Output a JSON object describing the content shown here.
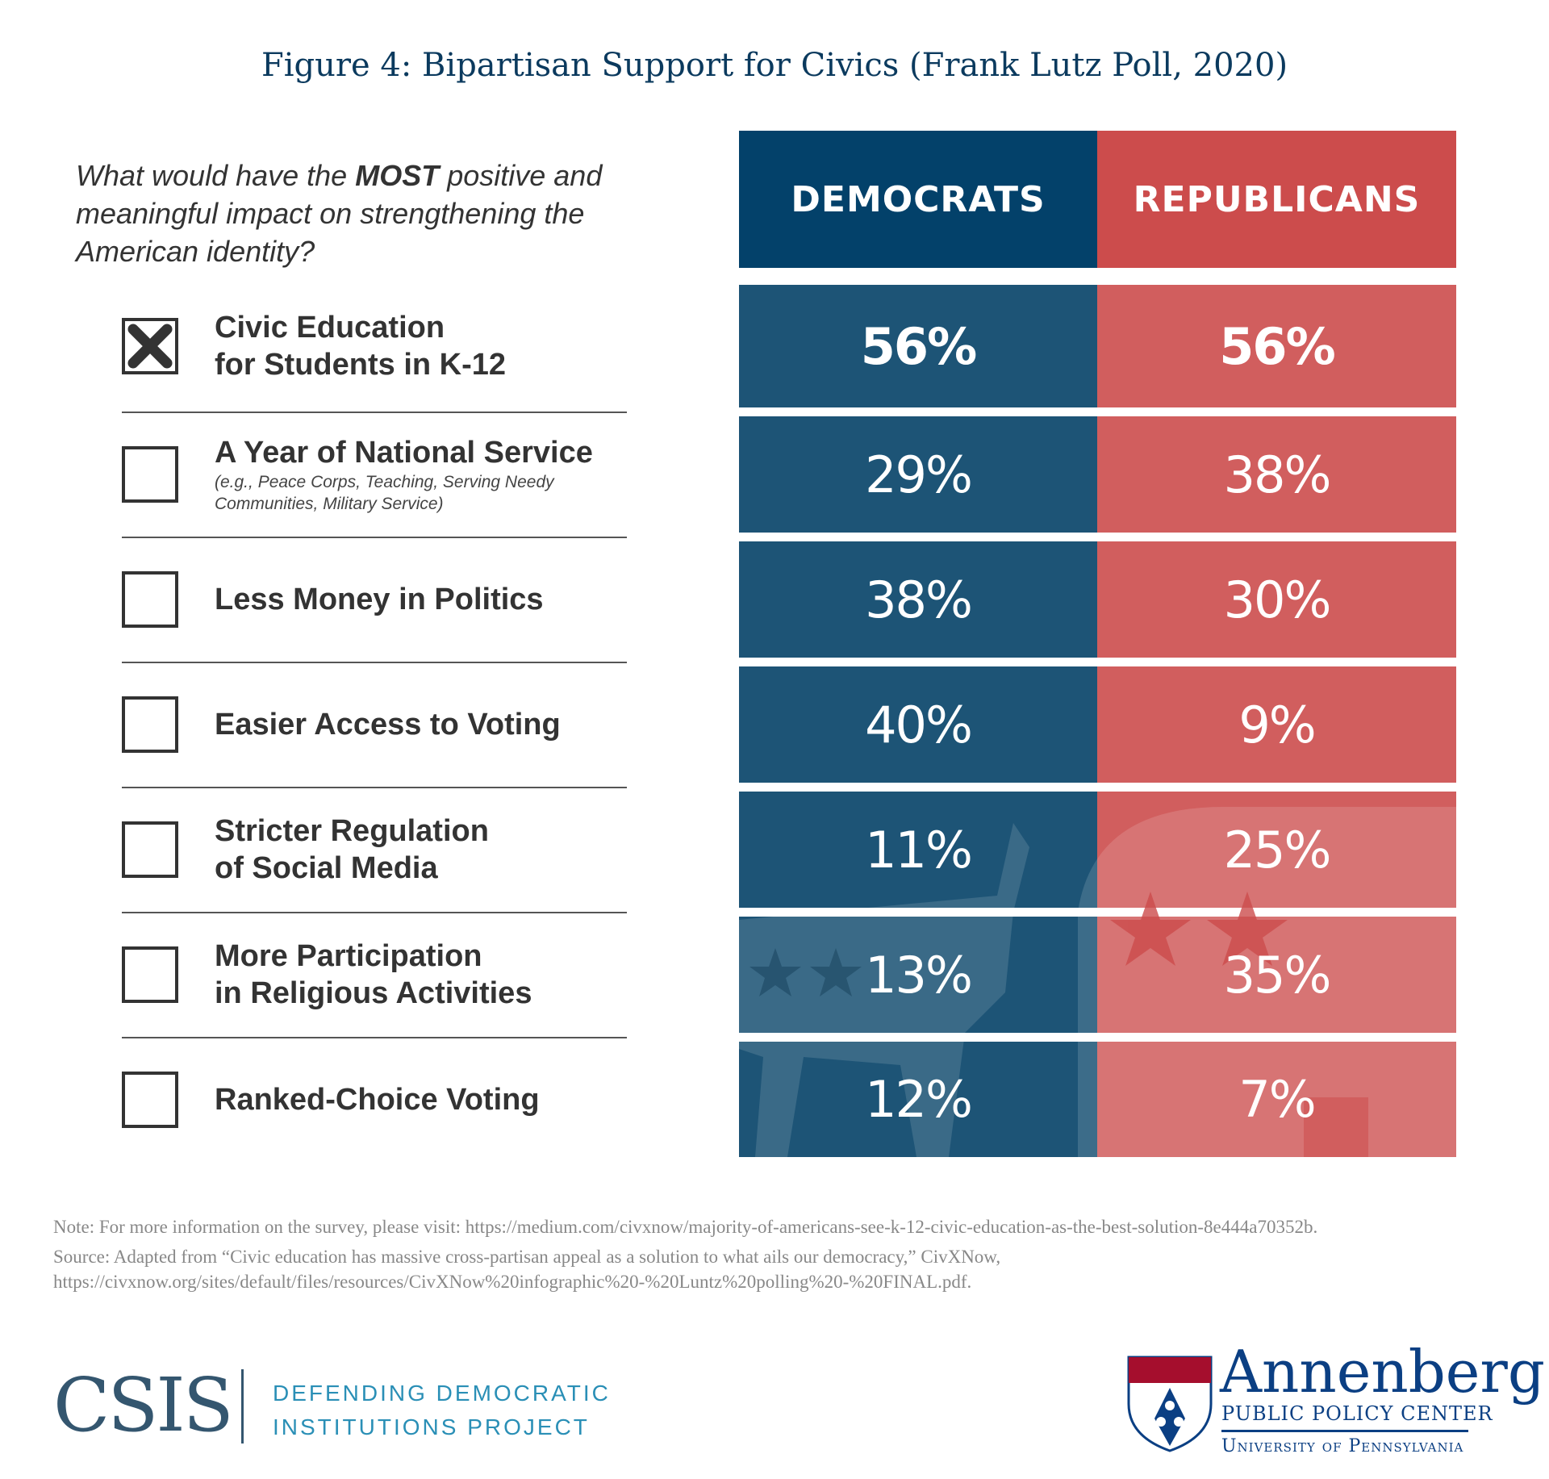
{
  "title": "Figure 4: Bipartisan Support for Civics (Frank Lutz Poll, 2020)",
  "question": {
    "pre": "What would have the ",
    "emph": "MOST",
    "post": " positive and meaningful impact on strengthening the American identity?"
  },
  "colors": {
    "democrats_header": "#03416a",
    "democrats": "#1d5476",
    "republicans_header": "#cc4c4c",
    "republicans": "#d15e5e"
  },
  "chart_data": {
    "type": "table",
    "columns": [
      "DEMOCRATS",
      "REPUBLICANS"
    ],
    "rows": [
      {
        "label": "Civic Education for Students in K-12",
        "checked": true,
        "democrats": "56%",
        "republicans": "56%"
      },
      {
        "label": "A Year of National Service",
        "sublabel": "(e.g., Peace Corps, Teaching, Serving Needy Communities, Military Service)",
        "checked": false,
        "democrats": "29%",
        "republicans": "38%"
      },
      {
        "label": "Less Money in Politics",
        "checked": false,
        "democrats": "38%",
        "republicans": "30%"
      },
      {
        "label": "Easier Access to Voting",
        "checked": false,
        "democrats": "40%",
        "republicans": "9%"
      },
      {
        "label": "Stricter Regulation of Social Media",
        "checked": false,
        "democrats": "11%",
        "republicans": "25%"
      },
      {
        "label": "More Participation in Religious Activities",
        "checked": false,
        "democrats": "13%",
        "republicans": "35%"
      },
      {
        "label": "Ranked-Choice Voting",
        "checked": false,
        "democrats": "12%",
        "republicans": "7%"
      }
    ]
  },
  "labels_display": [
    [
      "Civic Education",
      "for Students in K-12"
    ],
    [
      "A Year of National Service"
    ],
    [
      "Less Money in Politics"
    ],
    [
      "Easier Access to Voting"
    ],
    [
      "Stricter Regulation",
      "of Social Media"
    ],
    [
      "More Participation",
      "in Religious Activities"
    ],
    [
      "Ranked-Choice Voting"
    ]
  ],
  "note": "Note: For more information on the survey, please visit: https://medium.com/civxnow/majority-of-americans-see-k-12-civic-education-as-the-best-solution-8e444a70352b.",
  "source": "Source: Adapted from “Civic education has massive cross-partisan appeal as a solution to what ails our democracy,” CivXNow, https://civxnow.org/sites/default/files/resources/CivXNow%20infographic%20-%20Luntz%20polling%20-%20FINAL.pdf.",
  "logos": {
    "csis": "CSIS",
    "csis_project": [
      "DEFENDING DEMOCRATIC",
      "INSTITUTIONS PROJECT"
    ],
    "annenberg": "Annenberg",
    "annenberg_sub": "PUBLIC POLICY CENTER",
    "annenberg_univ": "University of Pennsylvania"
  }
}
